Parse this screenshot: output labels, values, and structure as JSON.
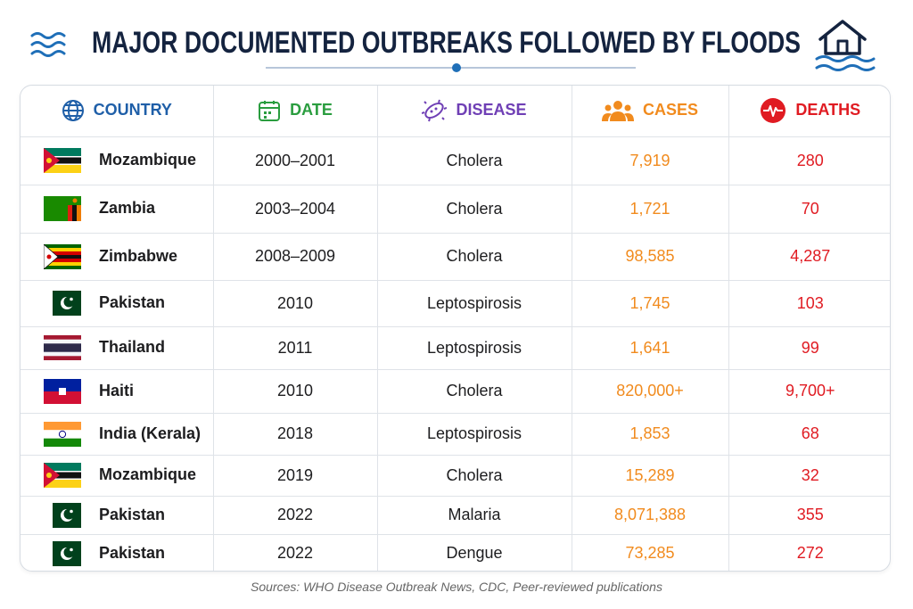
{
  "header": {
    "title": "MAJOR DOCUMENTED OUTBREAKS FOLLOWED BY FLOODS"
  },
  "table": {
    "headers": [
      "COUNTRY",
      "DATE",
      "DISEASE",
      "CASES",
      "DEATHS"
    ],
    "rows": [
      [
        "Mozambique",
        "2000–2001",
        "Cholera",
        "7,919",
        "280"
      ],
      [
        "Zambia",
        "2003–2004",
        "Cholera",
        "1,721",
        "70"
      ],
      [
        "Zimbabwe",
        "2008–2009",
        "Cholera",
        "98,585",
        "4,287"
      ],
      [
        "Pakistan",
        "2010",
        "Leptospirosis",
        "1,745",
        "103"
      ],
      [
        "Thailand",
        "2011",
        "Leptospirosis",
        "1,641",
        "99"
      ],
      [
        "Haiti",
        "2010",
        "Cholera",
        "820,000+",
        "9,700+"
      ],
      [
        "India (Kerala)",
        "2018",
        "Leptospirosis",
        "1,853",
        "68"
      ],
      [
        "Mozambique",
        "2019",
        "Cholera",
        "15,289",
        "32"
      ],
      [
        "Pakistan",
        "2022",
        "Malaria",
        "8,071,388",
        "355"
      ],
      [
        "Pakistan",
        "2022",
        "Dengue",
        "73,285",
        "272"
      ]
    ]
  },
  "footer": {
    "source": "Sources: WHO Disease Outbreak News, CDC, Peer-reviewed publications"
  }
}
